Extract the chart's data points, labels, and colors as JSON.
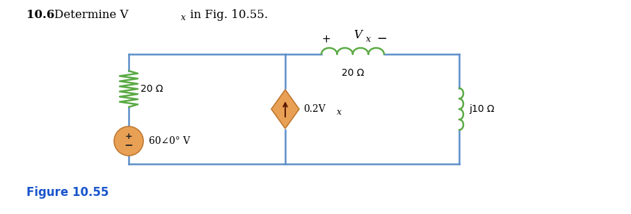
{
  "title_bold": "10.6",
  "title_rest": "  Determine V",
  "title_sub": "x",
  "title_end": " in Fig. 10.55.",
  "figure_label": "Figure 10.55",
  "background_color": "#ffffff",
  "circuit_line_color": "#5b8dc8",
  "resistor_color": "#5aaa44",
  "inductor_top_color": "#5aaa44",
  "inductor_right_color": "#5aaa44",
  "source_voltage_color": "#e8a055",
  "source_current_color": "#e8a055",
  "label_20ohm_left": "20 Ω",
  "label_20ohm_top": "20 Ω",
  "label_j10ohm": "j10 Ω",
  "label_source": "60∠0° V",
  "label_cs": "0.2V",
  "label_cs_sub": "x",
  "fig_label_color": "#1a56cc",
  "plus_color": "#333333",
  "minus_color": "#333333"
}
